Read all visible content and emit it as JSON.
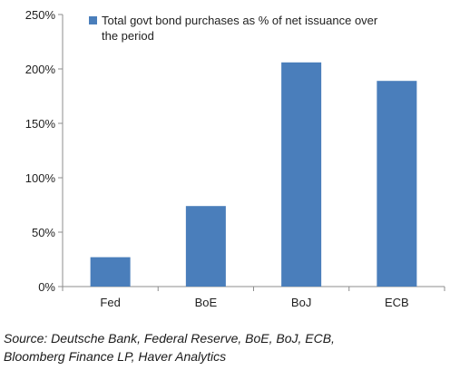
{
  "chart_data": {
    "type": "bar",
    "categories": [
      "Fed",
      "BoE",
      "BoJ",
      "ECB"
    ],
    "series": [
      {
        "name": "Total govt bond purchases as % of net issuance over the period",
        "values": [
          27,
          74,
          206,
          189
        ],
        "color": "#4a7ebb"
      }
    ],
    "legend_lines": [
      "Total govt bond purchases as % of net issuance over",
      "the period"
    ],
    "ylim": [
      0,
      250
    ],
    "yticks": [
      0,
      50,
      100,
      150,
      200,
      250
    ],
    "ytick_labels": [
      "0%",
      "50%",
      "100%",
      "150%",
      "200%",
      "250%"
    ],
    "legend_position": "top-left",
    "grid": false,
    "title": "",
    "xlabel": "",
    "ylabel": ""
  },
  "source": {
    "line1": "Source: Deutsche Bank, Federal Reserve, BoE, BoJ, ECB,",
    "line2": "Bloomberg Finance LP, Haver Analytics"
  }
}
